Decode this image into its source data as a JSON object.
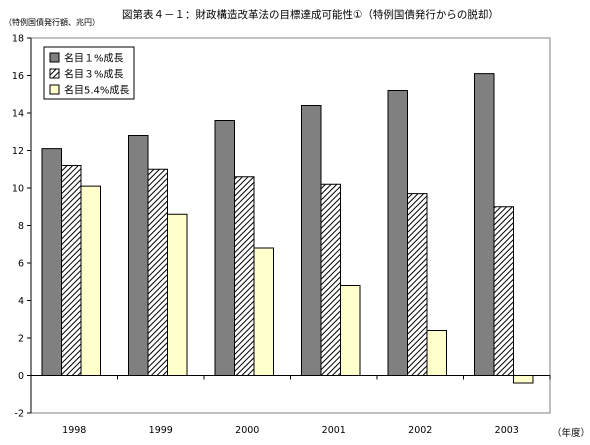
{
  "title": "図第表４－１：財政構造改革法の目標達成可能性①（特例国債発行からの脱却）",
  "colors": {
    "s0": "#808080",
    "s1_hatch": "#000000",
    "s2": "#ffffcc",
    "axis": "#000000"
  },
  "chart_data": {
    "type": "bar",
    "title": "図第表４－１：財政構造改革法の目標達成可能性①（特例国債発行からの脱却）",
    "ylabel": "（特例国債発行額、兆円）",
    "xlabel": "（年度）",
    "categories": [
      "1998",
      "1999",
      "2000",
      "2001",
      "2002",
      "2003"
    ],
    "ylim": [
      -2,
      18
    ],
    "yticks": [
      -2,
      0,
      2,
      4,
      6,
      8,
      10,
      12,
      14,
      16,
      18
    ],
    "grid": false,
    "legend_position": "top-left",
    "series": [
      {
        "name": "名目１%成長",
        "values": [
          12.1,
          12.8,
          13.6,
          14.4,
          15.2,
          16.1
        ]
      },
      {
        "name": "名目３%成長",
        "values": [
          11.2,
          11.0,
          10.6,
          10.2,
          9.7,
          9.0
        ]
      },
      {
        "name": "名目5.4%成長",
        "values": [
          10.1,
          8.6,
          6.8,
          4.8,
          2.4,
          -0.4
        ]
      }
    ]
  }
}
